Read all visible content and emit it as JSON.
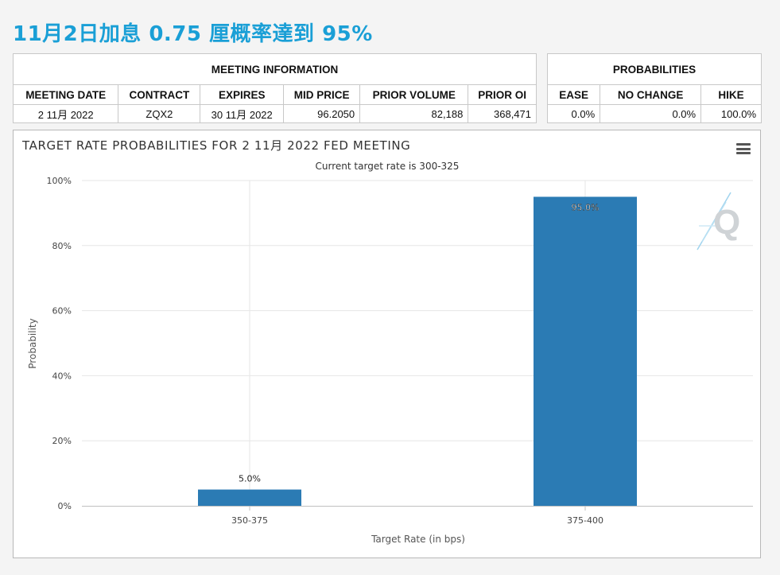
{
  "headline": "11月2日加息 0.75 厘概率達到 95%",
  "meeting_info": {
    "title": "MEETING INFORMATION",
    "headers": [
      "MEETING DATE",
      "CONTRACT",
      "EXPIRES",
      "MID PRICE",
      "PRIOR VOLUME",
      "PRIOR OI"
    ],
    "row": [
      "2 11月 2022",
      "ZQX2",
      "30 11月 2022",
      "96.2050",
      "82,188",
      "368,471"
    ]
  },
  "probabilities": {
    "title": "PROBABILITIES",
    "headers": [
      "EASE",
      "NO CHANGE",
      "HIKE"
    ],
    "row": [
      "0.0%",
      "0.0%",
      "100.0%"
    ]
  },
  "chart_data": {
    "type": "bar",
    "title": "TARGET RATE PROBABILITIES FOR 2 11月 2022 FED MEETING",
    "subtitle": "Current target rate is 300-325",
    "xlabel": "Target Rate (in bps)",
    "ylabel": "Probability",
    "categories": [
      "350-375",
      "375-400"
    ],
    "values": [
      5.0,
      95.0
    ],
    "data_labels": [
      "5.0%",
      "95.0%"
    ],
    "ylim": [
      0,
      100
    ],
    "yticks": [
      "0%",
      "20%",
      "40%",
      "60%",
      "80%",
      "100%"
    ],
    "bar_color": "#2b7bb4",
    "grid": true
  }
}
